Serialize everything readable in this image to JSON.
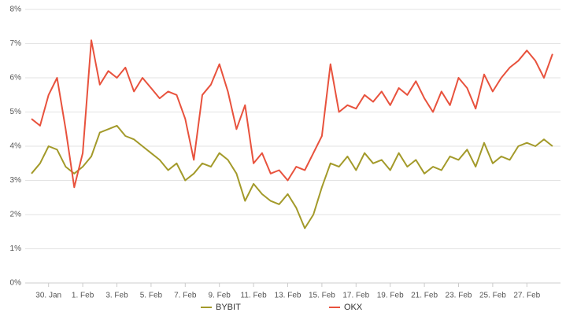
{
  "chart_data": {
    "type": "line",
    "categories": [
      null,
      null,
      "30. Jan",
      null,
      null,
      null,
      "1. Feb",
      null,
      null,
      null,
      "3. Feb",
      null,
      null,
      null,
      "5. Feb",
      null,
      null,
      null,
      "7. Feb",
      null,
      null,
      null,
      "9. Feb",
      null,
      null,
      null,
      "11. Feb",
      null,
      null,
      null,
      "13. Feb",
      null,
      null,
      null,
      "15. Feb",
      null,
      null,
      null,
      "17. Feb",
      null,
      null,
      null,
      "19. Feb",
      null,
      null,
      null,
      "21. Feb",
      null,
      null,
      null,
      "23. Feb",
      null,
      null,
      null,
      "25. Feb",
      null,
      null,
      null,
      "27. Feb",
      null,
      null,
      null
    ],
    "series": [
      {
        "name": "BYBIT",
        "color": "#a39a2a",
        "values": [
          3.2,
          3.5,
          4.0,
          3.9,
          3.4,
          3.2,
          3.4,
          3.7,
          4.4,
          4.5,
          4.6,
          4.3,
          4.2,
          4.0,
          3.8,
          3.6,
          3.3,
          3.5,
          3.0,
          3.2,
          3.5,
          3.4,
          3.8,
          3.6,
          3.2,
          2.4,
          2.9,
          2.6,
          2.4,
          2.3,
          2.6,
          2.2,
          1.6,
          2.0,
          2.8,
          3.5,
          3.4,
          3.7,
          3.3,
          3.8,
          3.5,
          3.6,
          3.3,
          3.8,
          3.4,
          3.6,
          3.2,
          3.4,
          3.3,
          3.7,
          3.6,
          3.9,
          3.4,
          4.1,
          3.5,
          3.7,
          3.6,
          4.0,
          4.1,
          4.0,
          4.2,
          4.0
        ]
      },
      {
        "name": "OKX",
        "color": "#e8523d",
        "values": [
          4.8,
          4.6,
          5.5,
          6.0,
          4.5,
          2.8,
          3.8,
          7.1,
          5.8,
          6.2,
          6.0,
          6.3,
          5.6,
          6.0,
          5.7,
          5.4,
          5.6,
          5.5,
          4.8,
          3.6,
          5.5,
          5.8,
          6.4,
          5.6,
          4.5,
          5.2,
          3.5,
          3.8,
          3.2,
          3.3,
          3.0,
          3.4,
          3.3,
          3.8,
          4.3,
          6.4,
          5.0,
          5.2,
          5.1,
          5.5,
          5.3,
          5.6,
          5.2,
          5.7,
          5.5,
          5.9,
          5.4,
          5.0,
          5.6,
          5.2,
          6.0,
          5.7,
          5.1,
          6.1,
          5.6,
          6.0,
          6.3,
          6.5,
          6.8,
          6.5,
          6.0,
          6.7
        ]
      }
    ],
    "ylim": [
      0,
      8
    ],
    "yticks": [
      {
        "value": 0,
        "label": "0%"
      },
      {
        "value": 1,
        "label": "1%"
      },
      {
        "value": 2,
        "label": "2%"
      },
      {
        "value": 3,
        "label": "3%"
      },
      {
        "value": 4,
        "label": "4%"
      },
      {
        "value": 5,
        "label": "5%"
      },
      {
        "value": 6,
        "label": "6%"
      },
      {
        "value": 7,
        "label": "7%"
      },
      {
        "value": 8,
        "label": "8%"
      }
    ],
    "grid": true
  }
}
